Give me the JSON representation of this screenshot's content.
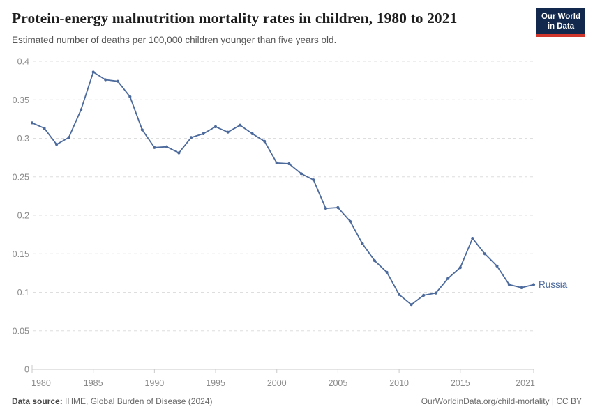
{
  "header": {
    "title": "Protein-energy malnutrition mortality rates in children, 1980 to 2021",
    "subtitle": "Estimated number of deaths per 100,000 children younger than five years old.",
    "logo": {
      "line1": "Our World",
      "line2": "in Data"
    }
  },
  "chart_data": {
    "type": "line",
    "title": "Protein-energy malnutrition mortality rates in children, 1980 to 2021",
    "xlabel": "",
    "ylabel": "",
    "xlim": [
      1980,
      2021
    ],
    "ylim": [
      0,
      0.4
    ],
    "xticks": [
      1980,
      1985,
      1990,
      1995,
      2000,
      2005,
      2010,
      2015,
      2021
    ],
    "yticks": [
      0,
      0.05,
      0.1,
      0.15,
      0.2,
      0.25,
      0.3,
      0.35,
      0.4
    ],
    "grid": "horizontal-dashed",
    "legend_position": "end-of-line-label",
    "series": [
      {
        "name": "Russia",
        "color": "#4C6A9C",
        "x": [
          1980,
          1981,
          1982,
          1983,
          1984,
          1985,
          1986,
          1987,
          1988,
          1989,
          1990,
          1991,
          1992,
          1993,
          1994,
          1995,
          1996,
          1997,
          1998,
          1999,
          2000,
          2001,
          2002,
          2003,
          2004,
          2005,
          2006,
          2007,
          2008,
          2009,
          2010,
          2011,
          2012,
          2013,
          2014,
          2015,
          2016,
          2017,
          2018,
          2019,
          2020,
          2021
        ],
        "values": [
          0.32,
          0.313,
          0.292,
          0.301,
          0.337,
          0.386,
          0.376,
          0.374,
          0.354,
          0.311,
          0.288,
          0.289,
          0.281,
          0.301,
          0.306,
          0.315,
          0.308,
          0.317,
          0.306,
          0.296,
          0.268,
          0.267,
          0.254,
          0.246,
          0.209,
          0.21,
          0.192,
          0.163,
          0.141,
          0.126,
          0.097,
          0.084,
          0.096,
          0.099,
          0.118,
          0.132,
          0.17,
          0.15,
          0.134,
          0.11,
          0.106,
          0.11
        ]
      }
    ]
  },
  "colors": {
    "line": "#4C6A9C",
    "gridline": "#dedede",
    "axis": "#c9c9c9",
    "tick_text": "#8b8b8b",
    "logo_bg": "#12294d",
    "logo_accent": "#d0362b"
  },
  "footer": {
    "source_label": "Data source:",
    "source_text": "IHME, Global Burden of Disease (2024)",
    "link_text": "OurWorldinData.org/child-mortality | CC BY"
  }
}
